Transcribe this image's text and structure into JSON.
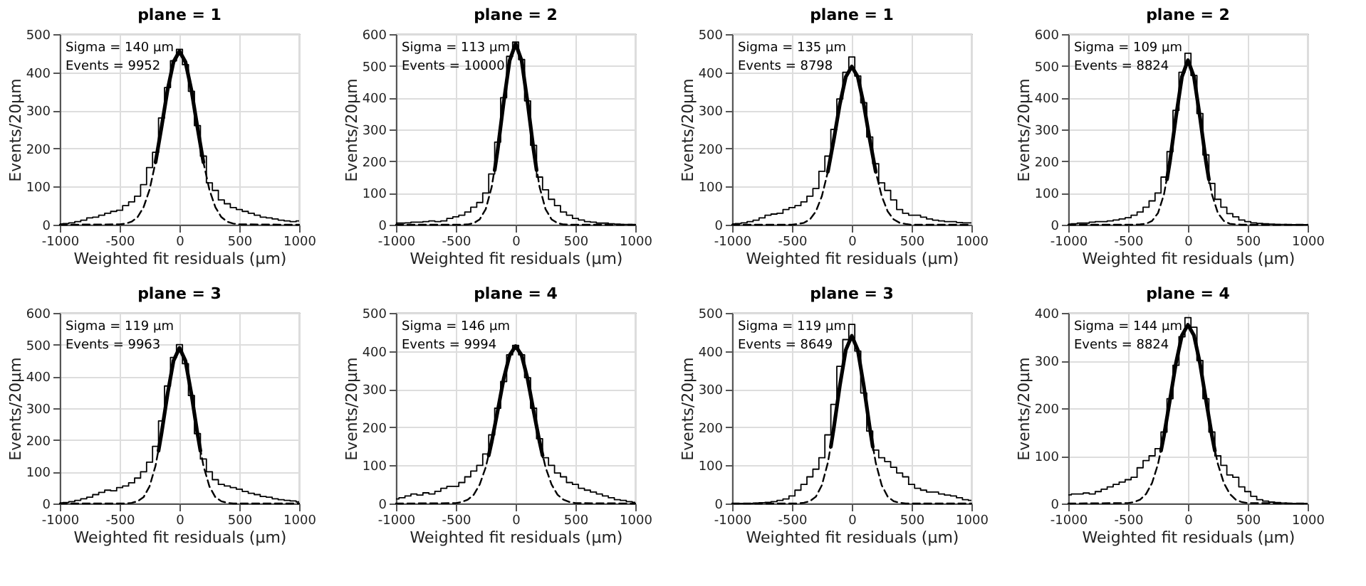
{
  "chart_data": [
    {
      "type": "step",
      "title": "plane = 1",
      "xlabel": "Weighted fit residuals (μm)",
      "ylabel": "Events/20μm",
      "annotations": [
        "Sigma = 140 μm",
        "Events = 9952"
      ],
      "xlim": [
        -1000,
        1000
      ],
      "xticks": [
        -1000,
        -500,
        0,
        500,
        1000
      ],
      "ylim": [
        0,
        500
      ],
      "yticks": [
        0,
        100,
        200,
        300,
        400,
        500
      ],
      "grid": true,
      "series": [
        {
          "type": "step",
          "color": "#000000",
          "x": [
            -1000,
            -950,
            -900,
            -850,
            -800,
            -750,
            -700,
            -650,
            -600,
            -550,
            -500,
            -450,
            -400,
            -350,
            -300,
            -250,
            -200,
            -150,
            -100,
            -50,
            0,
            50,
            100,
            150,
            200,
            250,
            300,
            350,
            400,
            450,
            500,
            550,
            600,
            650,
            700,
            750,
            800,
            850,
            900,
            950,
            1000
          ],
          "values": [
            2,
            3,
            5,
            8,
            12,
            18,
            20,
            25,
            30,
            35,
            38,
            50,
            60,
            75,
            105,
            150,
            190,
            280,
            360,
            430,
            460,
            420,
            350,
            260,
            180,
            110,
            90,
            65,
            55,
            45,
            40,
            35,
            30,
            25,
            20,
            18,
            15,
            12,
            10,
            8,
            10
          ]
        },
        {
          "type": "line",
          "line_style": "dashed",
          "color": "#000000",
          "x": [
            -1000,
            -500,
            -450,
            -400,
            -350,
            -300,
            -250,
            -200,
            -150,
            -100,
            -50,
            0,
            50,
            100,
            150,
            200,
            250,
            300,
            350,
            400,
            450,
            500,
            1000
          ],
          "values": [
            0,
            1,
            3,
            8,
            20,
            46,
            92,
            164,
            256,
            353,
            427,
            455,
            427,
            353,
            256,
            164,
            92,
            46,
            20,
            8,
            3,
            1,
            0
          ]
        },
        {
          "type": "line",
          "line_style": "solid",
          "color": "#000000",
          "x": [
            -200,
            -150,
            -100,
            -50,
            0,
            50,
            100,
            150,
            200
          ],
          "values": [
            164,
            256,
            353,
            427,
            455,
            427,
            353,
            256,
            164
          ]
        }
      ]
    },
    {
      "type": "step",
      "title": "plane = 2",
      "xlabel": "Weighted fit residuals (μm)",
      "ylabel": "Events/20μm",
      "annotations": [
        "Sigma = 113 μm",
        "Events = 10000"
      ],
      "xlim": [
        -1000,
        1000
      ],
      "xticks": [
        -1000,
        -500,
        0,
        500,
        1000
      ],
      "ylim": [
        0,
        600
      ],
      "yticks": [
        0,
        100,
        200,
        300,
        400,
        500,
        600
      ],
      "grid": true,
      "series": [
        {
          "type": "step",
          "color": "#000000",
          "x": [
            -1000,
            -950,
            -900,
            -850,
            -800,
            -750,
            -700,
            -650,
            -600,
            -550,
            -500,
            -450,
            -400,
            -350,
            -300,
            -250,
            -200,
            -150,
            -100,
            -50,
            0,
            50,
            100,
            150,
            200,
            250,
            300,
            350,
            400,
            450,
            500,
            550,
            600,
            650,
            700,
            750,
            800,
            850,
            900,
            950,
            1000
          ],
          "values": [
            5,
            5,
            6,
            8,
            8,
            10,
            12,
            10,
            12,
            20,
            25,
            30,
            40,
            55,
            70,
            100,
            160,
            260,
            400,
            530,
            575,
            520,
            390,
            250,
            150,
            110,
            80,
            60,
            40,
            30,
            20,
            15,
            10,
            8,
            5,
            5,
            3,
            2,
            1,
            1,
            0
          ]
        },
        {
          "type": "line",
          "line_style": "dashed",
          "color": "#000000",
          "x": [
            -1000,
            -500,
            -450,
            -400,
            -350,
            -300,
            -250,
            -200,
            -150,
            -100,
            -50,
            0,
            50,
            100,
            150,
            200,
            250,
            300,
            350,
            400,
            450,
            500,
            1000
          ],
          "values": [
            0,
            0,
            0,
            1,
            5,
            17,
            49,
            119,
            236,
            385,
            517,
            570,
            517,
            385,
            236,
            119,
            49,
            17,
            5,
            1,
            0,
            0,
            0
          ]
        },
        {
          "type": "line",
          "line_style": "solid",
          "color": "#000000",
          "x": [
            -175,
            -150,
            -100,
            -50,
            0,
            50,
            100,
            150,
            175
          ],
          "values": [
            172,
            236,
            385,
            517,
            570,
            517,
            385,
            236,
            172
          ]
        }
      ]
    },
    {
      "type": "step",
      "title": "plane = 1",
      "xlabel": "Weighted fit residuals (μm)",
      "ylabel": "Events/20μm",
      "annotations": [
        "Sigma = 135 μm",
        "Events = 8798"
      ],
      "xlim": [
        -1000,
        1000
      ],
      "xticks": [
        -1000,
        -500,
        0,
        500,
        1000
      ],
      "ylim": [
        0,
        500
      ],
      "yticks": [
        0,
        100,
        200,
        300,
        400,
        500
      ],
      "grid": true,
      "series": [
        {
          "type": "step",
          "color": "#000000",
          "x": [
            -1000,
            -950,
            -900,
            -850,
            -800,
            -750,
            -700,
            -650,
            -600,
            -550,
            -500,
            -450,
            -400,
            -350,
            -300,
            -250,
            -200,
            -150,
            -100,
            -50,
            0,
            50,
            100,
            150,
            200,
            250,
            300,
            350,
            400,
            450,
            500,
            550,
            600,
            650,
            700,
            750,
            800,
            850,
            900,
            950,
            1000
          ],
          "values": [
            2,
            3,
            5,
            8,
            12,
            18,
            25,
            28,
            30,
            40,
            45,
            50,
            60,
            75,
            95,
            140,
            180,
            250,
            330,
            400,
            440,
            390,
            320,
            230,
            160,
            110,
            90,
            65,
            40,
            30,
            25,
            25,
            20,
            15,
            12,
            10,
            8,
            8,
            6,
            5,
            5
          ]
        },
        {
          "type": "line",
          "line_style": "dashed",
          "color": "#000000",
          "x": [
            -1000,
            -500,
            -450,
            -400,
            -350,
            -300,
            -250,
            -200,
            -150,
            -100,
            -50,
            0,
            50,
            100,
            150,
            200,
            250,
            300,
            350,
            400,
            450,
            500,
            1000
          ],
          "values": [
            0,
            0,
            2,
            5,
            14,
            35,
            75,
            139,
            224,
            316,
            388,
            415,
            388,
            316,
            224,
            139,
            75,
            35,
            14,
            5,
            2,
            0,
            0
          ]
        },
        {
          "type": "line",
          "line_style": "solid",
          "color": "#000000",
          "x": [
            -200,
            -150,
            -100,
            -50,
            0,
            50,
            100,
            150,
            200
          ],
          "values": [
            139,
            224,
            316,
            388,
            415,
            388,
            316,
            224,
            139
          ]
        }
      ]
    },
    {
      "type": "step",
      "title": "plane = 2",
      "xlabel": "Weighted fit residuals (μm)",
      "ylabel": "Events/20μm",
      "annotations": [
        "Sigma = 109 μm",
        "Events = 8824"
      ],
      "xlim": [
        -1000,
        1000
      ],
      "xticks": [
        -1000,
        -500,
        0,
        500,
        1000
      ],
      "ylim": [
        0,
        600
      ],
      "yticks": [
        0,
        100,
        200,
        300,
        400,
        500,
        600
      ],
      "grid": true,
      "series": [
        {
          "type": "step",
          "color": "#000000",
          "x": [
            -1000,
            -950,
            -900,
            -850,
            -800,
            -750,
            -700,
            -650,
            -600,
            -550,
            -500,
            -450,
            -400,
            -350,
            -300,
            -250,
            -200,
            -150,
            -100,
            -50,
            0,
            50,
            100,
            150,
            200,
            250,
            300,
            350,
            400,
            450,
            500,
            550,
            600,
            650,
            700,
            750,
            800,
            850,
            900,
            950,
            1000
          ],
          "values": [
            2,
            3,
            5,
            5,
            8,
            10,
            10,
            12,
            15,
            18,
            22,
            30,
            40,
            55,
            75,
            100,
            150,
            230,
            360,
            480,
            540,
            470,
            350,
            220,
            130,
            80,
            55,
            35,
            25,
            15,
            10,
            6,
            4,
            3,
            2,
            1,
            1,
            0,
            0,
            0,
            0
          ]
        },
        {
          "type": "line",
          "line_style": "dashed",
          "color": "#000000",
          "x": [
            -1000,
            -500,
            -450,
            -400,
            -350,
            -300,
            -250,
            -200,
            -150,
            -100,
            -50,
            0,
            50,
            100,
            150,
            200,
            250,
            300,
            350,
            400,
            450,
            500,
            1000
          ],
          "values": [
            0,
            0,
            0,
            1,
            3,
            12,
            37,
            96,
            201,
            340,
            466,
            518,
            466,
            340,
            201,
            96,
            37,
            12,
            3,
            1,
            0,
            0,
            0
          ]
        },
        {
          "type": "line",
          "line_style": "solid",
          "color": "#000000",
          "x": [
            -175,
            -150,
            -100,
            -50,
            0,
            50,
            100,
            150,
            175
          ],
          "values": [
            143,
            201,
            340,
            466,
            518,
            466,
            340,
            201,
            143
          ]
        }
      ]
    },
    {
      "type": "step",
      "title": "plane = 3",
      "xlabel": "Weighted fit residuals (μm)",
      "ylabel": "Events/20μm",
      "annotations": [
        "Sigma = 119 μm",
        "Events = 9963"
      ],
      "xlim": [
        -1000,
        1000
      ],
      "xticks": [
        -1000,
        -500,
        0,
        500,
        1000
      ],
      "ylim": [
        0,
        600
      ],
      "yticks": [
        0,
        100,
        200,
        300,
        400,
        500,
        600
      ],
      "grid": true,
      "series": [
        {
          "type": "step",
          "color": "#000000",
          "x": [
            -1000,
            -950,
            -900,
            -850,
            -800,
            -750,
            -700,
            -650,
            -600,
            -550,
            -500,
            -450,
            -400,
            -350,
            -300,
            -250,
            -200,
            -150,
            -100,
            -50,
            0,
            50,
            100,
            150,
            200,
            250,
            300,
            350,
            400,
            450,
            500,
            550,
            600,
            650,
            700,
            750,
            800,
            850,
            900,
            950,
            1000
          ],
          "values": [
            2,
            3,
            6,
            10,
            15,
            20,
            28,
            35,
            42,
            40,
            50,
            55,
            65,
            80,
            100,
            130,
            180,
            260,
            370,
            460,
            500,
            440,
            340,
            220,
            140,
            100,
            75,
            60,
            55,
            50,
            45,
            38,
            32,
            28,
            22,
            20,
            15,
            12,
            10,
            8,
            5
          ]
        },
        {
          "type": "line",
          "line_style": "dashed",
          "color": "#000000",
          "x": [
            -1000,
            -500,
            -450,
            -400,
            -350,
            -300,
            -250,
            -200,
            -150,
            -100,
            -50,
            0,
            50,
            100,
            150,
            200,
            250,
            300,
            350,
            400,
            450,
            500,
            1000
          ],
          "values": [
            0,
            0,
            0,
            2,
            7,
            20,
            54,
            119,
            221,
            344,
            449,
            490,
            449,
            344,
            221,
            119,
            54,
            20,
            7,
            2,
            0,
            0,
            0
          ]
        },
        {
          "type": "line",
          "line_style": "solid",
          "color": "#000000",
          "x": [
            -175,
            -150,
            -100,
            -50,
            0,
            50,
            100,
            150,
            175
          ],
          "values": [
            166,
            221,
            344,
            449,
            490,
            449,
            344,
            221,
            166
          ]
        }
      ]
    },
    {
      "type": "step",
      "title": "plane = 4",
      "xlabel": "Weighted fit residuals (μm)",
      "ylabel": "Events/20μm",
      "annotations": [
        "Sigma = 146 μm",
        "Events = 9994"
      ],
      "xlim": [
        -1000,
        1000
      ],
      "xticks": [
        -1000,
        -500,
        0,
        500,
        1000
      ],
      "ylim": [
        0,
        500
      ],
      "yticks": [
        0,
        100,
        200,
        300,
        400,
        500
      ],
      "grid": true,
      "series": [
        {
          "type": "step",
          "color": "#000000",
          "x": [
            -1000,
            -950,
            -900,
            -850,
            -800,
            -750,
            -700,
            -650,
            -600,
            -550,
            -500,
            -450,
            -400,
            -350,
            -300,
            -250,
            -200,
            -150,
            -100,
            -50,
            0,
            50,
            100,
            150,
            200,
            250,
            300,
            350,
            400,
            450,
            500,
            550,
            600,
            650,
            700,
            750,
            800,
            850,
            900,
            950,
            1000
          ],
          "values": [
            12,
            15,
            20,
            25,
            22,
            28,
            25,
            32,
            40,
            45,
            45,
            55,
            70,
            85,
            100,
            130,
            180,
            250,
            320,
            390,
            415,
            390,
            330,
            250,
            170,
            120,
            100,
            80,
            70,
            55,
            50,
            40,
            35,
            30,
            25,
            20,
            15,
            10,
            8,
            5,
            3
          ]
        },
        {
          "type": "line",
          "line_style": "dashed",
          "color": "#000000",
          "x": [
            -1000,
            -500,
            -450,
            -400,
            -350,
            -300,
            -250,
            -200,
            -150,
            -100,
            -50,
            0,
            50,
            100,
            150,
            200,
            250,
            300,
            350,
            400,
            450,
            500,
            1000
          ],
          "values": [
            0,
            1,
            4,
            10,
            23,
            50,
            95,
            162,
            243,
            327,
            389,
            413,
            389,
            327,
            243,
            162,
            95,
            50,
            23,
            10,
            4,
            1,
            0
          ]
        },
        {
          "type": "line",
          "line_style": "solid",
          "color": "#000000",
          "x": [
            -225,
            -200,
            -150,
            -100,
            -50,
            0,
            50,
            100,
            150,
            200,
            225
          ],
          "values": [
            126,
            162,
            243,
            327,
            389,
            413,
            389,
            327,
            243,
            162,
            126
          ]
        }
      ]
    },
    {
      "type": "step",
      "title": "plane = 3",
      "xlabel": "Weighted fit residuals (μm)",
      "ylabel": "Events/20μm",
      "annotations": [
        "Sigma = 119 μm",
        "Events = 8649"
      ],
      "xlim": [
        -1000,
        1000
      ],
      "xticks": [
        -1000,
        -500,
        0,
        500,
        1000
      ],
      "ylim": [
        0,
        500
      ],
      "yticks": [
        0,
        100,
        200,
        300,
        400,
        500
      ],
      "grid": true,
      "series": [
        {
          "type": "step",
          "color": "#000000",
          "x": [
            -1000,
            -950,
            -900,
            -850,
            -800,
            -750,
            -700,
            -650,
            -600,
            -550,
            -500,
            -450,
            -400,
            -350,
            -300,
            -250,
            -200,
            -150,
            -100,
            -50,
            0,
            50,
            100,
            150,
            200,
            250,
            300,
            350,
            400,
            450,
            500,
            550,
            600,
            650,
            700,
            750,
            800,
            850,
            900,
            950,
            1000
          ],
          "values": [
            0,
            0,
            0,
            0,
            1,
            2,
            3,
            5,
            8,
            12,
            20,
            35,
            50,
            70,
            90,
            120,
            180,
            260,
            360,
            430,
            470,
            400,
            290,
            190,
            140,
            120,
            110,
            95,
            80,
            70,
            50,
            40,
            35,
            30,
            30,
            25,
            22,
            20,
            15,
            10,
            8
          ]
        },
        {
          "type": "line",
          "line_style": "dashed",
          "color": "#000000",
          "x": [
            -1000,
            -500,
            -450,
            -400,
            -350,
            -300,
            -250,
            -200,
            -150,
            -100,
            -50,
            0,
            50,
            100,
            150,
            200,
            250,
            300,
            350,
            400,
            450,
            500,
            1000
          ],
          "values": [
            0,
            0,
            0,
            2,
            6,
            18,
            48,
            107,
            199,
            309,
            403,
            440,
            403,
            309,
            199,
            107,
            48,
            18,
            6,
            2,
            0,
            0,
            0
          ]
        },
        {
          "type": "line",
          "line_style": "solid",
          "color": "#000000",
          "x": [
            -175,
            -150,
            -100,
            -50,
            0,
            50,
            100,
            150,
            175
          ],
          "values": [
            149,
            199,
            309,
            403,
            440,
            403,
            309,
            199,
            149
          ]
        }
      ]
    },
    {
      "type": "step",
      "title": "plane = 4",
      "xlabel": "Weighted fit residuals (μm)",
      "ylabel": "Events/20μm",
      "annotations": [
        "Sigma = 144 μm",
        "Events = 8824"
      ],
      "xlim": [
        -1000,
        1000
      ],
      "xticks": [
        -1000,
        -500,
        0,
        500,
        1000
      ],
      "ylim": [
        0,
        400
      ],
      "yticks": [
        0,
        100,
        200,
        300,
        400
      ],
      "grid": true,
      "series": [
        {
          "type": "step",
          "color": "#000000",
          "x": [
            -1000,
            -950,
            -900,
            -850,
            -800,
            -750,
            -700,
            -650,
            -600,
            -550,
            -500,
            -450,
            -400,
            -350,
            -300,
            -250,
            -200,
            -150,
            -100,
            -50,
            0,
            50,
            100,
            150,
            200,
            250,
            300,
            350,
            400,
            450,
            500,
            550,
            600,
            650,
            700,
            750,
            800,
            850,
            900,
            950,
            1000
          ],
          "values": [
            18,
            20,
            20,
            22,
            20,
            25,
            30,
            35,
            40,
            45,
            50,
            55,
            75,
            90,
            100,
            115,
            150,
            220,
            290,
            350,
            390,
            370,
            300,
            220,
            150,
            100,
            80,
            60,
            55,
            35,
            25,
            15,
            8,
            5,
            3,
            2,
            1,
            0,
            0,
            0,
            0
          ]
        },
        {
          "type": "line",
          "line_style": "dashed",
          "color": "#000000",
          "x": [
            -1000,
            -500,
            -450,
            -400,
            -350,
            -300,
            -250,
            -200,
            -150,
            -100,
            -50,
            0,
            50,
            100,
            150,
            200,
            250,
            300,
            350,
            400,
            450,
            500,
            1000
          ],
          "values": [
            0,
            1,
            3,
            8,
            20,
            43,
            83,
            143,
            218,
            295,
            353,
            375,
            353,
            295,
            218,
            143,
            83,
            43,
            20,
            8,
            3,
            1,
            0
          ]
        },
        {
          "type": "line",
          "line_style": "solid",
          "color": "#000000",
          "x": [
            -225,
            -200,
            -150,
            -100,
            -50,
            0,
            50,
            100,
            150,
            200,
            225
          ],
          "values": [
            111,
            143,
            218,
            295,
            353,
            375,
            353,
            295,
            218,
            143,
            111
          ]
        }
      ]
    }
  ]
}
